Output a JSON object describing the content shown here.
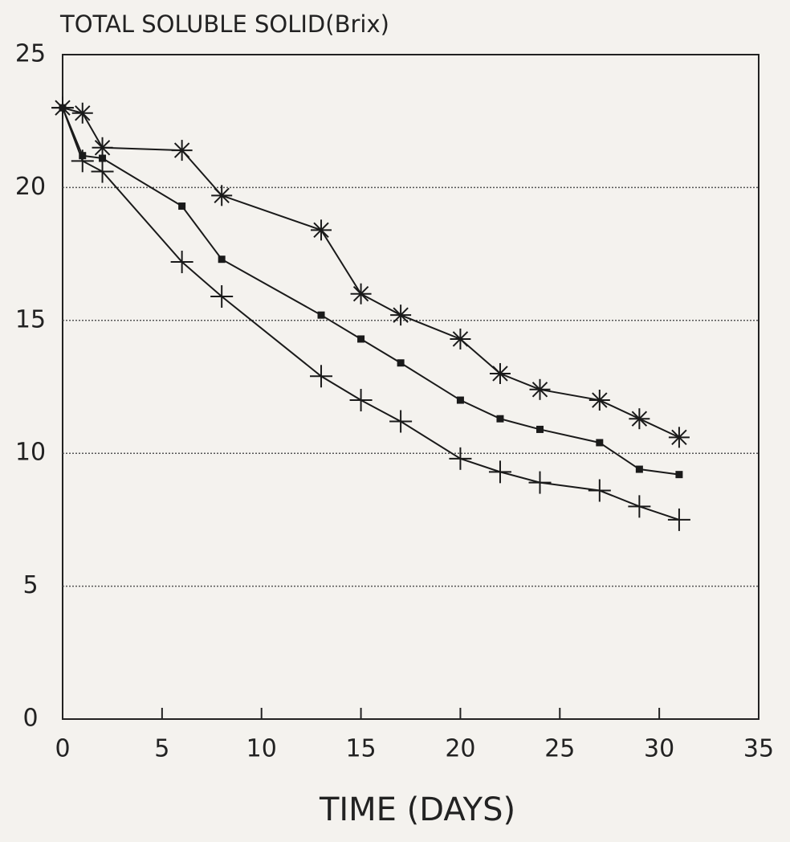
{
  "chart_data": {
    "type": "line",
    "title": "TOTAL SOLUBLE SOLID(Brix)",
    "x_label": "TIME (DAYS)",
    "x": [
      0,
      1,
      2,
      6,
      8,
      13,
      15,
      17,
      20,
      22,
      24,
      27,
      29,
      31
    ],
    "series": [
      {
        "marker": "star",
        "color": "#1a1a1a",
        "values": [
          23,
          22.8,
          21.5,
          21.4,
          19.7,
          18.4,
          16.0,
          15.2,
          14.3,
          13.0,
          12.4,
          12.0,
          11.3,
          10.6
        ]
      },
      {
        "marker": "square",
        "color": "#1a1a1a",
        "values": [
          23,
          21.2,
          21.1,
          19.3,
          17.3,
          15.2,
          14.3,
          13.4,
          12.0,
          11.3,
          10.9,
          10.4,
          9.4,
          9.2
        ]
      },
      {
        "marker": "plus",
        "color": "#1a1a1a",
        "values": [
          23,
          21.0,
          20.6,
          17.2,
          15.9,
          12.9,
          12.0,
          11.2,
          9.8,
          9.3,
          8.9,
          8.6,
          8.0,
          7.5
        ]
      }
    ],
    "xlim": [
      0,
      35
    ],
    "xticks": [
      0,
      5,
      10,
      15,
      20,
      25,
      30,
      35
    ],
    "ylim": [
      0,
      25
    ],
    "yticks": [
      0,
      5,
      10,
      15,
      20,
      25
    ],
    "grid": true
  }
}
